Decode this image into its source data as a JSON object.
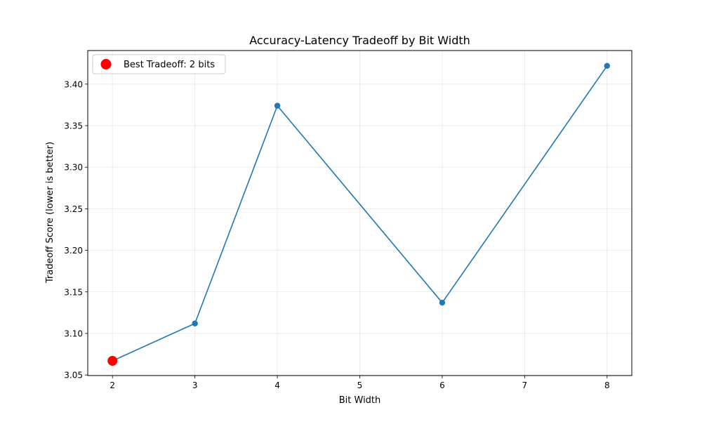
{
  "chart_data": {
    "type": "line",
    "title": "Accuracy-Latency Tradeoff by Bit Width",
    "xlabel": "Bit Width",
    "ylabel": "Tradeoff Score (lower is better)",
    "xlim": [
      1.7,
      8.3
    ],
    "ylim": [
      3.0493,
      3.4404
    ],
    "x_ticks": [
      2,
      3,
      4,
      5,
      6,
      7,
      8
    ],
    "y_ticks": [
      3.05,
      3.1,
      3.15,
      3.2,
      3.25,
      3.3,
      3.35,
      3.4
    ],
    "y_tick_labels": [
      "3.05",
      "3.10",
      "3.15",
      "3.20",
      "3.25",
      "3.30",
      "3.35",
      "3.40"
    ],
    "grid": true,
    "series": [
      {
        "x": [
          2,
          3,
          4,
          6,
          8
        ],
        "values": [
          3.067,
          3.112,
          3.374,
          3.137,
          3.422
        ],
        "color": "#1f77b4",
        "marker": "circle"
      }
    ],
    "highlight": {
      "x": 2,
      "y": 3.067,
      "color": "#ff0000",
      "label": "Best Tradeoff: 2 bits"
    },
    "legend": {
      "position": "top-left",
      "entries": [
        "Best Tradeoff: 2 bits"
      ]
    }
  }
}
